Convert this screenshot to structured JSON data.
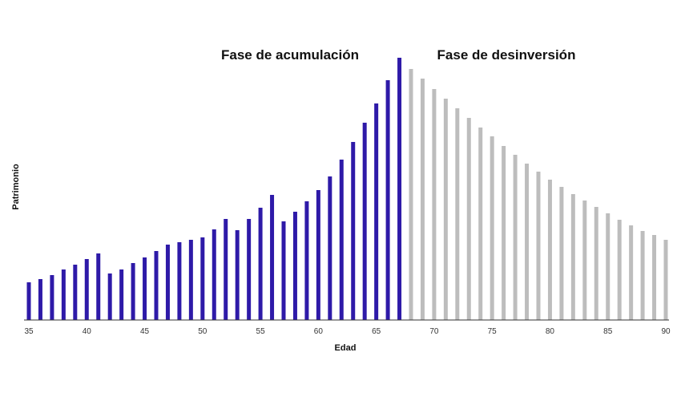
{
  "chart_data": {
    "type": "bar",
    "xlabel": "Edad",
    "ylabel": "Patrimonio",
    "annotations": {
      "accumulation": "Fase de acumulación",
      "divestment": "Fase de desinversión"
    },
    "x": [
      35,
      36,
      37,
      38,
      39,
      40,
      41,
      42,
      43,
      44,
      45,
      46,
      47,
      48,
      49,
      50,
      51,
      52,
      53,
      54,
      55,
      56,
      57,
      58,
      59,
      60,
      61,
      62,
      63,
      64,
      65,
      66,
      67,
      68,
      69,
      70,
      71,
      72,
      73,
      74,
      75,
      76,
      77,
      78,
      79,
      80,
      81,
      82,
      83,
      84,
      85,
      86,
      87,
      88,
      89,
      90
    ],
    "x_ticks": [
      35,
      40,
      45,
      50,
      55,
      60,
      65,
      70,
      75,
      80,
      85,
      90
    ],
    "ylim": [
      0,
      320
    ],
    "grid": false,
    "legend": "none",
    "series": [
      {
        "phase": "accumulation",
        "color": "#2e1aa8",
        "x": [
          35,
          36,
          37,
          38,
          39,
          40,
          41,
          42,
          43,
          44,
          45,
          46,
          47,
          48,
          49,
          50,
          51,
          52,
          53,
          54,
          55,
          56,
          57,
          58,
          59,
          60,
          61,
          62,
          63,
          64,
          65,
          66,
          67
        ],
        "values": [
          47,
          51,
          56,
          63,
          69,
          76,
          83,
          58,
          63,
          71,
          78,
          86,
          94,
          97,
          100,
          103,
          113,
          126,
          112,
          126,
          140,
          156,
          123,
          135,
          148,
          162,
          179,
          200,
          222,
          246,
          270,
          299,
          327
        ]
      },
      {
        "phase": "divestment",
        "color": "#bdbdbd",
        "x": [
          68,
          69,
          70,
          71,
          72,
          73,
          74,
          75,
          76,
          77,
          78,
          79,
          80,
          81,
          82,
          83,
          84,
          85,
          86,
          87,
          88,
          89,
          90
        ],
        "values": [
          313,
          301,
          288,
          276,
          264,
          252,
          240,
          229,
          217,
          206,
          195,
          185,
          175,
          166,
          157,
          149,
          141,
          133,
          125,
          118,
          111,
          106,
          100
        ]
      }
    ]
  }
}
